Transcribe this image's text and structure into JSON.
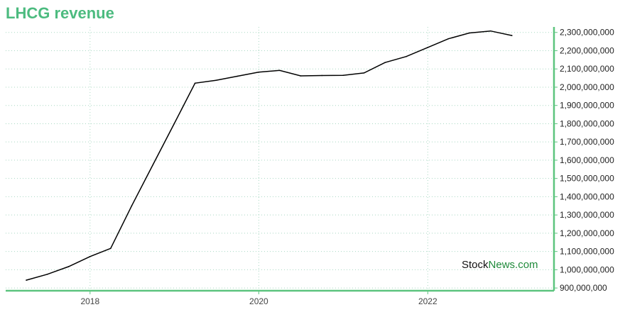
{
  "title": "LHCG revenue",
  "watermark": {
    "part1": "Stock",
    "part2": "News",
    "part3": ".com"
  },
  "colors": {
    "title": "#4cbb7f",
    "axis": "#5cc47e",
    "grid": "#a8d8c2",
    "line": "#000000"
  },
  "chart_data": {
    "type": "line",
    "title": "LHCG revenue",
    "xlabel": "",
    "ylabel": "",
    "x_ticks": [
      "2018",
      "2020",
      "2022"
    ],
    "y_ticks": [
      "900,000,000",
      "1,000,000,000",
      "1,100,000,000",
      "1,200,000,000",
      "1,300,000,000",
      "1,400,000,000",
      "1,500,000,000",
      "1,600,000,000",
      "1,700,000,000",
      "1,800,000,000",
      "1,900,000,000",
      "2,000,000,000",
      "2,100,000,000",
      "2,200,000,000",
      "2,300,000,000"
    ],
    "ylim": [
      885000000,
      2330000000
    ],
    "xlim": [
      "2017-01-01",
      "2023-07-01"
    ],
    "grid": true,
    "y_axis_position": "right",
    "series": [
      {
        "name": "",
        "x": [
          "2017-03-31",
          "2017-06-30",
          "2017-09-30",
          "2017-12-31",
          "2018-03-31",
          "2018-06-30",
          "2018-09-30",
          "2018-12-31",
          "2019-03-31",
          "2019-06-30",
          "2019-09-30",
          "2019-12-31",
          "2020-03-31",
          "2020-06-30",
          "2020-09-30",
          "2020-12-31",
          "2021-03-31",
          "2021-06-30",
          "2021-09-30",
          "2021-12-31",
          "2022-03-31",
          "2022-06-30",
          "2022-09-30",
          "2022-12-31"
        ],
        "values": [
          943000000,
          975000000,
          1017000000,
          1072000000,
          1117000000,
          1350000000,
          1575000000,
          1800000000,
          2022000000,
          2038000000,
          2060000000,
          2082000000,
          2092000000,
          2062000000,
          2064000000,
          2065000000,
          2078000000,
          2135000000,
          2168000000,
          2217000000,
          2265000000,
          2297000000,
          2308000000,
          2283000000
        ]
      }
    ]
  }
}
